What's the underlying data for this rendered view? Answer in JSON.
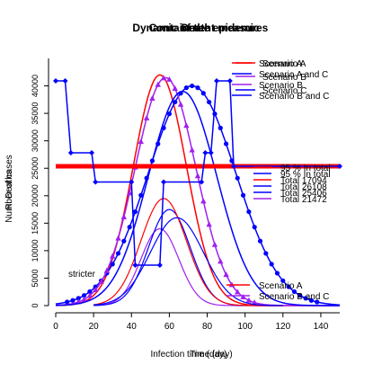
{
  "chart_data": [
    {
      "type": "line",
      "title": "Dynamic of the epidemic",
      "xlabel": "Infection time (day)",
      "ylabel": "Number of cases",
      "xlim": [
        0,
        150
      ],
      "ylim": [
        0,
        45000
      ],
      "x_ticks": [
        "0",
        "20",
        "40",
        "60",
        "80",
        "100",
        "120",
        "140"
      ],
      "y_ticks": [
        "0",
        "5000",
        "10000",
        "15000",
        "20000",
        "25000",
        "30000",
        "35000",
        "40000"
      ],
      "legend_position": "right",
      "series": [
        {
          "name": "Scenario A",
          "color": "#ff0000",
          "peak_x": 55,
          "peak_y": 42000,
          "sd": 14,
          "marker": "none"
        },
        {
          "name": "Scenario A and C",
          "color": "#0000ff",
          "peak_x": 72,
          "peak_y": 40000,
          "sd": 23,
          "marker": "circle"
        },
        {
          "name": "Scenario B",
          "color": "#a020f0",
          "peak_x": 58,
          "peak_y": 41500,
          "sd": 16,
          "marker": "triangle"
        },
        {
          "name": "Scenario B and C",
          "color": "#0000ff",
          "peak_x": 67,
          "peak_y": 39000,
          "sd": 18,
          "marker": "none"
        }
      ],
      "legend": [
        {
          "label": "Scenario A",
          "color": "#ff0000"
        },
        {
          "label": "Scenario A and C",
          "color": "#0000ff"
        },
        {
          "label": "Scenario B",
          "color": "#a020f0"
        },
        {
          "label": "Scenario B and C",
          "color": "#0000ff"
        }
      ]
    },
    {
      "type": "line",
      "title": "Death",
      "ylabel": "Deaths",
      "legend": [
        {
          "label": "95 % In total",
          "color": "#ff0000"
        },
        {
          "label": "95 % In total",
          "color": "#0000ff"
        },
        {
          "label": "Total 17094",
          "color": "#ff0000"
        },
        {
          "label": "Total 26108",
          "color": "#0000ff"
        },
        {
          "label": "Total 25406",
          "color": "#0000ff"
        },
        {
          "label": "Total 21472",
          "color": "#a020f0"
        }
      ]
    },
    {
      "type": "line",
      "title": "Containment measures",
      "xlabel": "Time (day)",
      "ylabel": "R",
      "annotation": "stricter",
      "legend": [
        {
          "label": "Scenario A",
          "color": "#ff0000"
        },
        {
          "label": "Scenario B",
          "color": "#a020f0"
        },
        {
          "label": "Scenario C",
          "color": "#0000ff"
        }
      ],
      "bottom_legend": [
        {
          "label": "Scenario A",
          "color": "#ff0000"
        },
        {
          "label": "Scenario B and C",
          "color": "#a020f0"
        }
      ],
      "series": [
        {
          "name": "Scenario A",
          "color": "#ff0000",
          "x": [
            0,
            150
          ],
          "y": [
            0.62,
            0.62
          ]
        },
        {
          "name": "Scenario C",
          "color": "#0000ff",
          "x": [
            0,
            5,
            8,
            19,
            21,
            40,
            42,
            55,
            57,
            77,
            79,
            82,
            85,
            92,
            94,
            150
          ],
          "y": [
            1.0,
            1.0,
            0.68,
            0.68,
            0.55,
            0.55,
            0.18,
            0.18,
            0.55,
            0.55,
            0.68,
            0.68,
            1.0,
            1.0,
            0.62,
            0.62
          ]
        }
      ]
    }
  ]
}
